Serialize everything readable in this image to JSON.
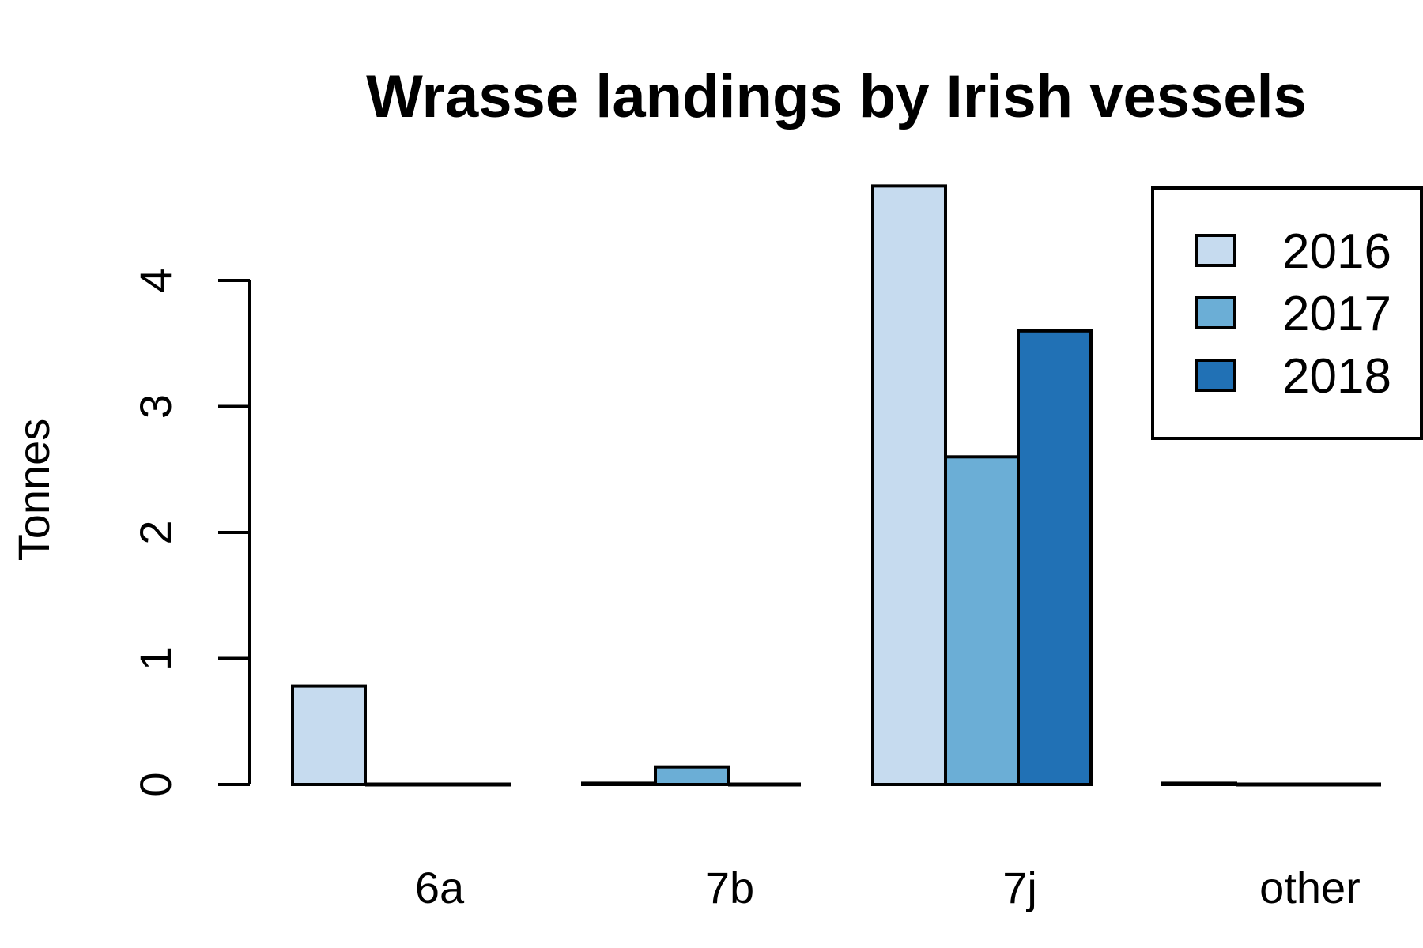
{
  "chart_data": {
    "type": "bar",
    "title": "Wrasse landings by Irish vessels",
    "xlabel": "",
    "ylabel": "Tonnes",
    "categories": [
      "6a",
      "7b",
      "7j",
      "other"
    ],
    "series": [
      {
        "name": "2016",
        "color": "#c6dbef",
        "values": [
          0.78,
          0.01,
          4.75,
          0.01
        ]
      },
      {
        "name": "2017",
        "color": "#6baed6",
        "values": [
          0,
          0.14,
          2.6,
          0
        ]
      },
      {
        "name": "2018",
        "color": "#2171b5",
        "values": [
          0,
          0,
          3.6,
          0
        ]
      }
    ],
    "yticks": [
      0,
      1,
      2,
      3,
      4
    ],
    "ylim": [
      0,
      4.75
    ],
    "grid": false,
    "legend_position": "top-right",
    "bar_border_color": "#000000"
  }
}
